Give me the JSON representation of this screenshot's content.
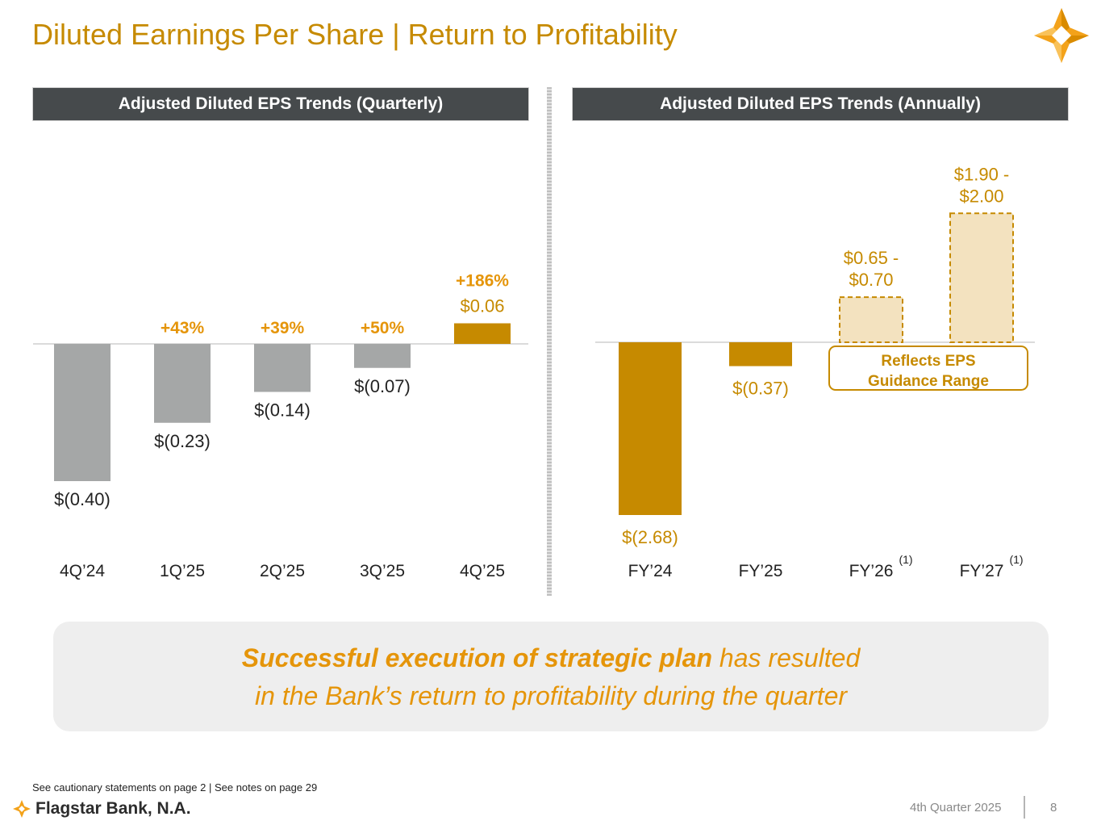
{
  "page": {
    "title": "Diluted Earnings Per Share | Return to Profitability",
    "footnote": "See cautionary statements on page 2  |  See notes on page 29",
    "brand": "Flagstar Bank, N.A.",
    "quarter": "4th Quarter 2025",
    "page_number": "8"
  },
  "callout": {
    "emphasis": "Successful execution of strategic plan",
    "line1_rest": " has resulted",
    "line2": "in the Bank’s return to profitability during the quarter"
  },
  "colors": {
    "gold": "#c68a00",
    "bright_gold": "#e5950a",
    "gray_bar": "#a5a7a7",
    "guidance_fill": "#f3e2bf",
    "header_bg": "#464a4c"
  },
  "chart_data": [
    {
      "type": "bar",
      "title": "Adjusted Diluted EPS Trends (Quarterly)",
      "categories": [
        "4Q’24",
        "1Q’25",
        "2Q’25",
        "3Q’25",
        "4Q’25"
      ],
      "values": [
        -0.4,
        -0.23,
        -0.14,
        -0.07,
        0.06
      ],
      "value_labels": [
        "$(0.40)",
        "$(0.23)",
        "$(0.14)",
        "$(0.07)",
        "$0.06"
      ],
      "change_labels": [
        "",
        "+43%",
        "+39%",
        "+50%",
        "+186%"
      ],
      "highlight": [
        false,
        false,
        false,
        false,
        true
      ],
      "xlabel": "",
      "ylabel": "",
      "ylim": [
        -0.4,
        0.06
      ]
    },
    {
      "type": "bar",
      "title": "Adjusted Diluted EPS Trends (Annually)",
      "categories": [
        "FY’24",
        "FY’25",
        "FY’26",
        "FY’27"
      ],
      "category_notes": [
        "",
        "",
        "(1)",
        "(1)"
      ],
      "values": [
        -2.68,
        -0.37,
        0.7,
        2.0
      ],
      "range_low": [
        null,
        null,
        0.65,
        1.9
      ],
      "value_labels": [
        "$(2.68)",
        "$(0.37)",
        "$0.65 -\n$0.70",
        "$1.90 -\n$2.00"
      ],
      "guidance": [
        false,
        false,
        true,
        true
      ],
      "annotation": "Reflects EPS\nGuidance Range",
      "xlabel": "",
      "ylabel": "",
      "ylim": [
        -2.68,
        2.0
      ]
    }
  ]
}
